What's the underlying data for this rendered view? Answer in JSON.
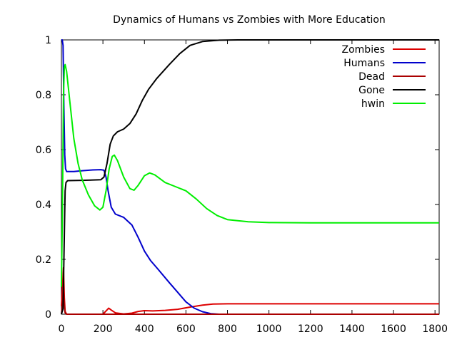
{
  "chart_data": {
    "type": "line",
    "title": "Dynamics of Humans vs Zombies with More Education",
    "xlabel": "",
    "ylabel": "",
    "xlim": [
      0,
      1820
    ],
    "ylim": [
      0,
      1
    ],
    "x_ticks": [
      0,
      200,
      400,
      600,
      800,
      1000,
      1200,
      1400,
      1600,
      1800
    ],
    "y_ticks": [
      0,
      0.2,
      0.4,
      0.6,
      0.8,
      1
    ],
    "y_tick_labels": [
      "0",
      "0.2",
      "0.4",
      "0.6",
      "0.8",
      "1"
    ],
    "grid": false,
    "legend_position": "top-right",
    "series": [
      {
        "name": "Zombies",
        "color": "#dd0000",
        "points": [
          [
            0,
            0.03
          ],
          [
            5,
            0.1
          ],
          [
            10,
            0.17
          ],
          [
            14,
            0.06
          ],
          [
            18,
            0.01
          ],
          [
            25,
            0.0
          ],
          [
            100,
            0.0
          ],
          [
            200,
            0.0
          ],
          [
            215,
            0.012
          ],
          [
            228,
            0.022
          ],
          [
            240,
            0.015
          ],
          [
            260,
            0.005
          ],
          [
            300,
            0.001
          ],
          [
            340,
            0.004
          ],
          [
            370,
            0.01
          ],
          [
            400,
            0.013
          ],
          [
            440,
            0.012
          ],
          [
            500,
            0.014
          ],
          [
            560,
            0.018
          ],
          [
            620,
            0.026
          ],
          [
            680,
            0.033
          ],
          [
            730,
            0.037
          ],
          [
            800,
            0.038
          ],
          [
            1000,
            0.038
          ],
          [
            1400,
            0.038
          ],
          [
            1820,
            0.038
          ]
        ]
      },
      {
        "name": "Humans",
        "color": "#0000cc",
        "points": [
          [
            0,
            1.0
          ],
          [
            4,
            1.0
          ],
          [
            8,
            0.98
          ],
          [
            12,
            0.75
          ],
          [
            16,
            0.58
          ],
          [
            20,
            0.53
          ],
          [
            25,
            0.52
          ],
          [
            60,
            0.52
          ],
          [
            100,
            0.523
          ],
          [
            150,
            0.526
          ],
          [
            190,
            0.527
          ],
          [
            205,
            0.525
          ],
          [
            215,
            0.5
          ],
          [
            225,
            0.45
          ],
          [
            240,
            0.39
          ],
          [
            260,
            0.365
          ],
          [
            300,
            0.353
          ],
          [
            340,
            0.325
          ],
          [
            370,
            0.28
          ],
          [
            400,
            0.23
          ],
          [
            430,
            0.195
          ],
          [
            470,
            0.16
          ],
          [
            520,
            0.115
          ],
          [
            560,
            0.08
          ],
          [
            600,
            0.045
          ],
          [
            640,
            0.022
          ],
          [
            680,
            0.009
          ],
          [
            720,
            0.002
          ],
          [
            760,
            0.0
          ],
          [
            1000,
            0.0
          ],
          [
            1400,
            0.0
          ],
          [
            1820,
            0.0
          ]
        ]
      },
      {
        "name": "Dead",
        "color": "#aa0000",
        "points": [
          [
            0,
            0.0
          ],
          [
            5,
            0.04
          ],
          [
            10,
            0.08
          ],
          [
            14,
            0.03
          ],
          [
            18,
            0.005
          ],
          [
            25,
            0.0
          ],
          [
            200,
            0.0
          ],
          [
            400,
            0.0
          ],
          [
            800,
            0.0
          ],
          [
            1200,
            0.0
          ],
          [
            1820,
            0.0
          ]
        ]
      },
      {
        "name": "Gone",
        "color": "#000000",
        "points": [
          [
            0,
            0.0
          ],
          [
            8,
            0.02
          ],
          [
            12,
            0.2
          ],
          [
            16,
            0.38
          ],
          [
            18,
            0.45
          ],
          [
            22,
            0.48
          ],
          [
            30,
            0.487
          ],
          [
            100,
            0.488
          ],
          [
            190,
            0.49
          ],
          [
            205,
            0.5
          ],
          [
            220,
            0.55
          ],
          [
            235,
            0.62
          ],
          [
            250,
            0.65
          ],
          [
            270,
            0.665
          ],
          [
            300,
            0.675
          ],
          [
            330,
            0.695
          ],
          [
            360,
            0.73
          ],
          [
            390,
            0.78
          ],
          [
            420,
            0.82
          ],
          [
            460,
            0.86
          ],
          [
            520,
            0.91
          ],
          [
            570,
            0.95
          ],
          [
            620,
            0.98
          ],
          [
            680,
            0.994
          ],
          [
            760,
            0.999
          ],
          [
            850,
            1.0
          ],
          [
            1000,
            1.0
          ],
          [
            1400,
            1.0
          ],
          [
            1820,
            1.0
          ]
        ]
      },
      {
        "name": "hwin",
        "color": "#00ee00",
        "points": [
          [
            0,
            0.1
          ],
          [
            5,
            0.4
          ],
          [
            10,
            0.8
          ],
          [
            14,
            0.9
          ],
          [
            18,
            0.91
          ],
          [
            25,
            0.885
          ],
          [
            40,
            0.78
          ],
          [
            60,
            0.64
          ],
          [
            80,
            0.55
          ],
          [
            100,
            0.49
          ],
          [
            130,
            0.435
          ],
          [
            160,
            0.395
          ],
          [
            185,
            0.38
          ],
          [
            200,
            0.39
          ],
          [
            215,
            0.45
          ],
          [
            230,
            0.53
          ],
          [
            245,
            0.575
          ],
          [
            255,
            0.58
          ],
          [
            270,
            0.56
          ],
          [
            300,
            0.5
          ],
          [
            330,
            0.458
          ],
          [
            350,
            0.452
          ],
          [
            370,
            0.47
          ],
          [
            400,
            0.505
          ],
          [
            425,
            0.515
          ],
          [
            450,
            0.508
          ],
          [
            500,
            0.48
          ],
          [
            550,
            0.465
          ],
          [
            600,
            0.45
          ],
          [
            650,
            0.42
          ],
          [
            700,
            0.385
          ],
          [
            750,
            0.36
          ],
          [
            800,
            0.345
          ],
          [
            900,
            0.337
          ],
          [
            1000,
            0.334
          ],
          [
            1200,
            0.333
          ],
          [
            1500,
            0.333
          ],
          [
            1820,
            0.333
          ]
        ]
      }
    ]
  }
}
